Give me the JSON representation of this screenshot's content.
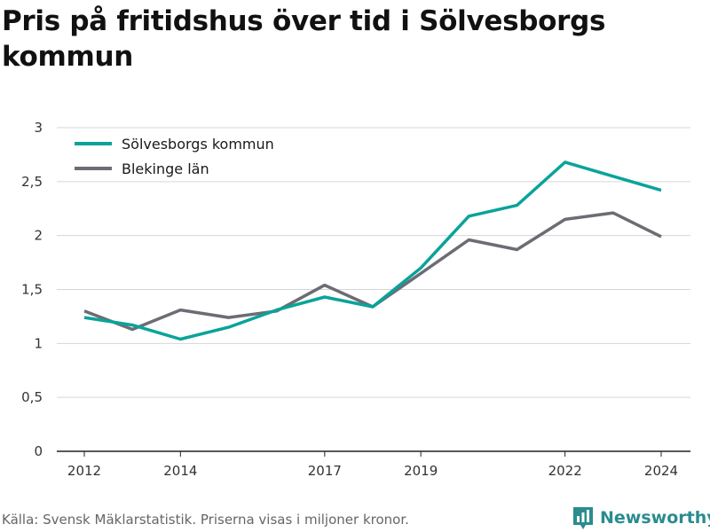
{
  "chart_data": {
    "type": "line",
    "title": "Pris på fritidshus över tid i Sölvesborgs kommun",
    "xlabel": "",
    "ylabel": "",
    "x": [
      2012,
      2013,
      2014,
      2015,
      2016,
      2017,
      2018,
      2019,
      2020,
      2021,
      2022,
      2023,
      2024
    ],
    "xticks": [
      2012,
      2014,
      2017,
      2019,
      2022,
      2024
    ],
    "yticks": [
      0,
      0.5,
      1,
      1.5,
      2,
      2.5,
      3
    ],
    "ytick_labels": [
      "0",
      "0,5",
      "1",
      "1,5",
      "2",
      "2,5",
      "3"
    ],
    "ylim": [
      0,
      3
    ],
    "grid": "horizontal",
    "legend_position": "top-left",
    "series": [
      {
        "name": "Sölvesborgs kommun",
        "color": "#0aa39a",
        "values": [
          1.24,
          1.17,
          1.04,
          1.15,
          1.31,
          1.43,
          1.34,
          1.7,
          2.18,
          2.28,
          2.68,
          2.55,
          2.42
        ]
      },
      {
        "name": "Blekinge län",
        "color": "#6d6c73",
        "values": [
          1.3,
          1.13,
          1.31,
          1.24,
          1.3,
          1.54,
          1.34,
          1.65,
          1.96,
          1.87,
          2.15,
          2.21,
          1.99
        ]
      }
    ]
  },
  "footer": {
    "source": "Källa: Svensk Mäklarstatistik. Priserna visas i miljoner kronor.",
    "brand": "Newsworthy",
    "brand_color": "#2a8c8f",
    "brand_icon": "bar-chart-logo-icon"
  }
}
